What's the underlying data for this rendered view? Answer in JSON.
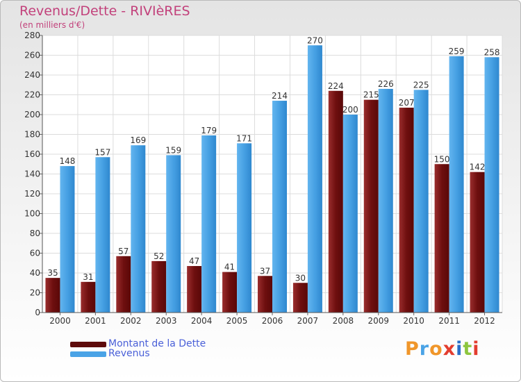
{
  "chart_data": {
    "type": "bar",
    "title": "Revenus/Dette - RIVIèRES",
    "subtitle": "(en milliers d'€)",
    "categories": [
      "2000",
      "2001",
      "2002",
      "2003",
      "2004",
      "2005",
      "2006",
      "2007",
      "2008",
      "2009",
      "2010",
      "2011",
      "2012"
    ],
    "series": [
      {
        "name": "Montant de la Dette",
        "color": "#7a1515",
        "values": [
          35,
          31,
          57,
          52,
          47,
          41,
          37,
          30,
          224,
          215,
          207,
          150,
          142
        ]
      },
      {
        "name": "Revenus",
        "color": "#4aa3e6",
        "values": [
          148,
          157,
          169,
          159,
          179,
          171,
          214,
          270,
          200,
          226,
          225,
          259,
          258
        ]
      }
    ],
    "ylim": [
      0,
      280
    ],
    "yticks": [
      0,
      20,
      40,
      60,
      80,
      100,
      120,
      140,
      160,
      180,
      200,
      220,
      240,
      260,
      280
    ],
    "grid": true,
    "legend_position": "bottom-left"
  },
  "logo_text": "Proxiti"
}
